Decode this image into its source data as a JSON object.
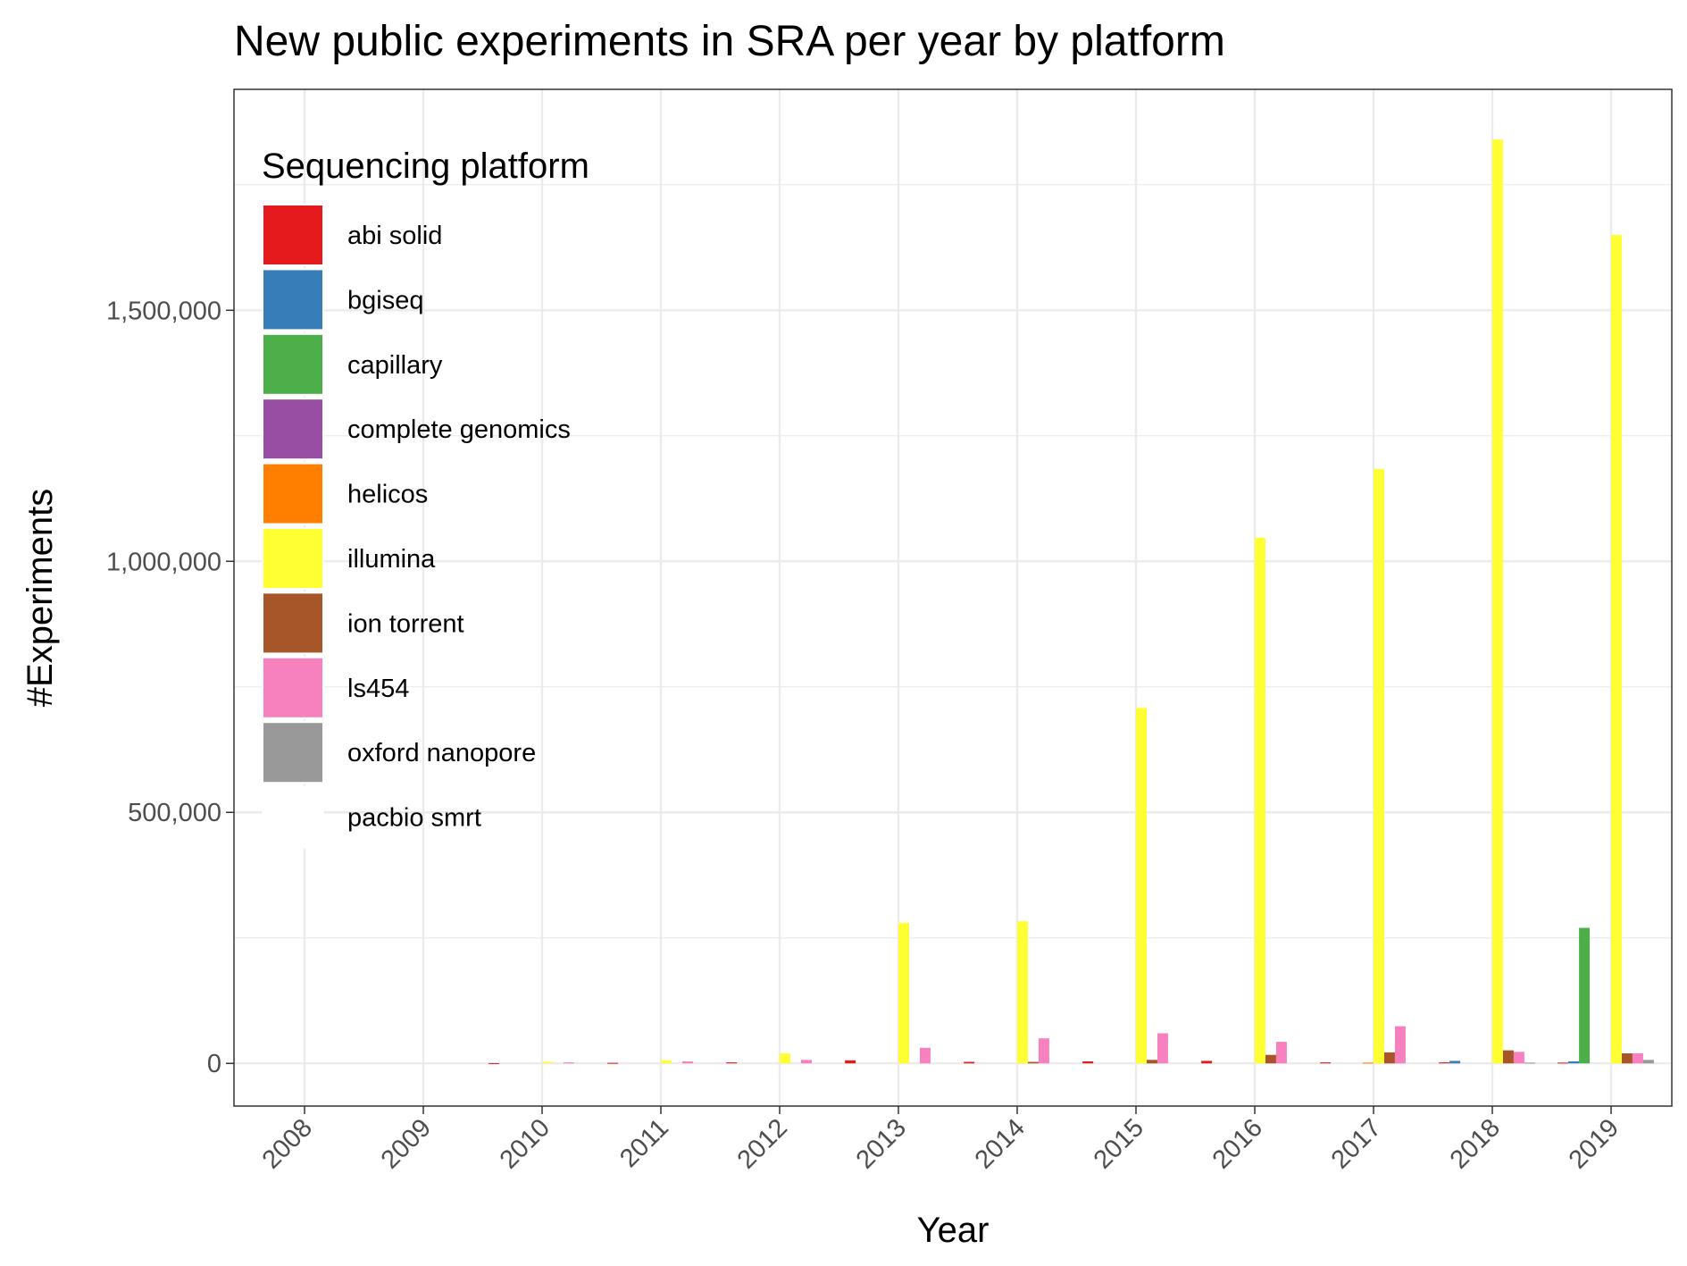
{
  "chart_data": {
    "type": "bar",
    "title": "New public experiments in SRA per year by platform",
    "xlabel": "Year",
    "ylabel": "#Experiments",
    "categories": [
      "2008",
      "2009",
      "2010",
      "2011",
      "2012",
      "2013",
      "2014",
      "2015",
      "2016",
      "2017",
      "2018",
      "2019"
    ],
    "ylim": [
      -85000,
      1940000
    ],
    "yticks": [
      0,
      500000,
      1000000,
      1500000
    ],
    "ytick_labels": [
      "0",
      "500,000",
      "1,000,000",
      "1,500,000"
    ],
    "grid": true,
    "legend": {
      "title": "Sequencing platform",
      "position": "top-left inside"
    },
    "series": [
      {
        "name": "abi solid",
        "color": "#E41A1C",
        "values": [
          0,
          0,
          500,
          1000,
          2000,
          6000,
          3000,
          4000,
          5000,
          2000,
          2000,
          1500
        ]
      },
      {
        "name": "bgiseq",
        "color": "#377EB8",
        "values": [
          0,
          0,
          0,
          0,
          0,
          0,
          0,
          0,
          0,
          0,
          5000,
          4000
        ]
      },
      {
        "name": "capillary",
        "color": "#4DAF4A",
        "values": [
          0,
          0,
          0,
          0,
          0,
          0,
          0,
          0,
          0,
          0,
          0,
          270000
        ]
      },
      {
        "name": "complete genomics",
        "color": "#984EA3",
        "values": [
          0,
          0,
          0,
          0,
          0,
          0,
          0,
          0,
          0,
          0,
          0,
          0
        ]
      },
      {
        "name": "helicos",
        "color": "#FF7F00",
        "values": [
          0,
          0,
          0,
          0,
          0,
          0,
          0,
          0,
          0,
          1500,
          0,
          0
        ]
      },
      {
        "name": "illumina",
        "color": "#FFFF33",
        "values": [
          0,
          0,
          3000,
          6000,
          20000,
          280000,
          283000,
          708000,
          1047000,
          1184000,
          1840000,
          1650000
        ]
      },
      {
        "name": "ion torrent",
        "color": "#A65628",
        "values": [
          0,
          0,
          0,
          0,
          0,
          0,
          3000,
          7000,
          17000,
          22000,
          26000,
          20000
        ]
      },
      {
        "name": "ls454",
        "color": "#F781BF",
        "values": [
          0,
          0,
          2000,
          4000,
          7000,
          31000,
          50000,
          60000,
          43000,
          74000,
          23000,
          20000
        ]
      },
      {
        "name": "oxford nanopore",
        "color": "#999999",
        "values": [
          0,
          0,
          0,
          0,
          0,
          0,
          0,
          0,
          0,
          0,
          1500,
          7000
        ]
      },
      {
        "name": "pacbio smrt",
        "color": "#FFFFFF",
        "values": [
          0,
          0,
          0,
          0,
          0,
          0,
          0,
          0,
          0,
          0,
          0,
          0
        ]
      }
    ]
  }
}
